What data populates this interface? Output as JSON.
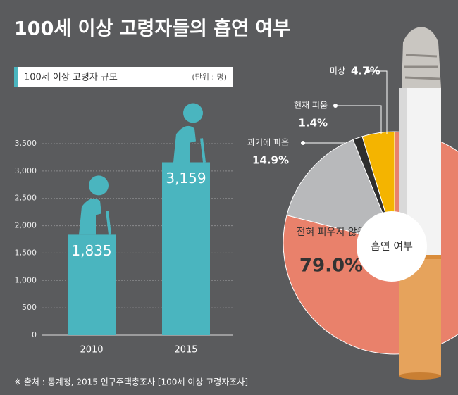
{
  "title": "100세 이상 고령자들의 흡연 여부",
  "source": "※ 출처 : 통계청, 2015 인구주택총조사 [100세 이상 고령자조사]",
  "chart_data": [
    {
      "type": "bar",
      "title": "100세 이상 고령자 규모",
      "unit": "(단위 : 명)",
      "categories": [
        "2010",
        "2015"
      ],
      "values": [
        1835,
        3159
      ],
      "value_labels": [
        "1,835",
        "3,159"
      ],
      "color": "#4ab5bf",
      "ylim": [
        0,
        3500
      ],
      "yticks": [
        0,
        500,
        {
          "value": 1000,
          "label": "1,000"
        },
        {
          "value": 1500,
          "label": "1,500"
        },
        {
          "value": 2000,
          "label": "2,000"
        },
        {
          "value": 2500,
          "label": "2,500"
        },
        {
          "value": 3000,
          "label": "3,000"
        },
        {
          "value": 3500,
          "label": "3,500"
        }
      ],
      "grid": true
    },
    {
      "type": "pie",
      "title": "흡연 여부",
      "categories": [
        "미상",
        "현재 피움",
        "과거에 피움",
        "전혀 피우지 않음"
      ],
      "values": [
        4.7,
        1.4,
        14.9,
        79.0
      ],
      "value_labels": [
        "4.7%",
        "1.4%",
        "14.9%",
        "79.0%"
      ],
      "colors": [
        "#f4b400",
        "#2e2e2e",
        "#b8b9bb",
        "#e9816b"
      ]
    }
  ]
}
